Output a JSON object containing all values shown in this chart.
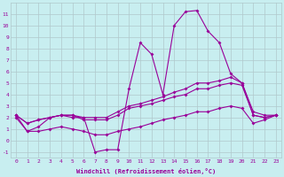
{
  "x": [
    0,
    1,
    2,
    3,
    4,
    5,
    6,
    7,
    8,
    9,
    10,
    11,
    12,
    13,
    14,
    15,
    16,
    17,
    18,
    19,
    20,
    21,
    22,
    23
  ],
  "main_line": [
    2.2,
    0.8,
    1.2,
    2.0,
    2.2,
    2.0,
    2.0,
    -1.0,
    -0.8,
    -0.8,
    4.5,
    8.5,
    7.5,
    4.0,
    10.0,
    11.2,
    11.3,
    9.5,
    8.5,
    5.8,
    5.0,
    2.2,
    2.0,
    2.2
  ],
  "line2": [
    2.2,
    1.5,
    1.8,
    2.0,
    2.2,
    2.2,
    2.0,
    2.0,
    2.0,
    2.5,
    3.0,
    3.2,
    3.5,
    3.8,
    4.2,
    4.5,
    5.0,
    5.0,
    5.2,
    5.5,
    5.0,
    2.5,
    2.2,
    2.2
  ],
  "line3": [
    2.2,
    1.5,
    1.8,
    2.0,
    2.2,
    2.2,
    1.8,
    1.8,
    1.8,
    2.2,
    2.8,
    3.0,
    3.2,
    3.5,
    3.8,
    4.0,
    4.5,
    4.5,
    4.8,
    5.0,
    4.8,
    2.2,
    2.0,
    2.2
  ],
  "line4": [
    2.0,
    0.8,
    0.8,
    1.0,
    1.2,
    1.0,
    0.8,
    0.5,
    0.5,
    0.8,
    1.0,
    1.2,
    1.5,
    1.8,
    2.0,
    2.2,
    2.5,
    2.5,
    2.8,
    3.0,
    2.8,
    1.5,
    1.8,
    2.2
  ],
  "color": "#990099",
  "bgcolor": "#c8eef0",
  "grid_color": "#b0c8cc",
  "xlabel": "Windchill (Refroidissement éolien,°C)",
  "ylim": [
    -1.5,
    12
  ],
  "xlim": [
    -0.5,
    23.5
  ],
  "yticks": [
    -1,
    0,
    1,
    2,
    3,
    4,
    5,
    6,
    7,
    8,
    9,
    10,
    11
  ],
  "xticks": [
    0,
    1,
    2,
    3,
    4,
    5,
    6,
    7,
    8,
    9,
    10,
    11,
    12,
    13,
    14,
    15,
    16,
    17,
    18,
    19,
    20,
    21,
    22,
    23
  ]
}
